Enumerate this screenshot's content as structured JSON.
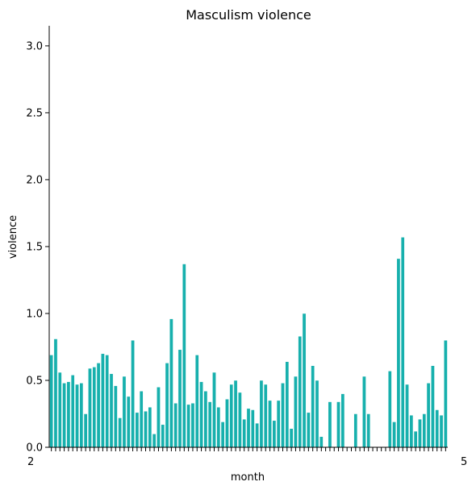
{
  "chart_data": {
    "type": "bar",
    "title": "Masculism violence",
    "xlabel": "month",
    "ylabel": "violence",
    "ylim": [
      0,
      3.15
    ],
    "yticks": [
      "0.0",
      "0.5",
      "1.0",
      "1.5",
      "2.0",
      "2.5",
      "3.0"
    ],
    "grid": false,
    "legend": "none",
    "bar_color": "#17b0ad",
    "edge_color": "#ffffff",
    "x_tick_text_first": "2",
    "x_tick_text_last": "5",
    "values": [
      0.69,
      0.81,
      0.56,
      0.48,
      0.49,
      0.54,
      0.47,
      0.48,
      0.25,
      0.59,
      0.6,
      0.63,
      0.7,
      0.69,
      0.55,
      0.46,
      0.22,
      0.53,
      0.38,
      0.8,
      0.26,
      0.42,
      0.27,
      0.3,
      0.1,
      0.45,
      0.17,
      0.63,
      0.96,
      0.33,
      0.73,
      1.37,
      0.32,
      0.33,
      0.69,
      0.49,
      0.42,
      0.34,
      0.56,
      0.3,
      0.19,
      0.36,
      0.47,
      0.5,
      0.41,
      0.21,
      0.29,
      0.28,
      0.18,
      0.5,
      0.47,
      0.35,
      0.2,
      0.35,
      0.48,
      0.64,
      0.14,
      0.53,
      0.83,
      1.0,
      0.26,
      0.61,
      0.5,
      0.08,
      0.0,
      0.34,
      0.0,
      0.34,
      0.4,
      0.0,
      0.0,
      0.25,
      0.0,
      0.53,
      0.25,
      0.0,
      0.0,
      0.0,
      0.0,
      0.57,
      0.19,
      1.41,
      1.57,
      0.47,
      0.24,
      0.12,
      0.21,
      0.25,
      0.48,
      0.61,
      0.28,
      0.24,
      0.8
    ]
  }
}
